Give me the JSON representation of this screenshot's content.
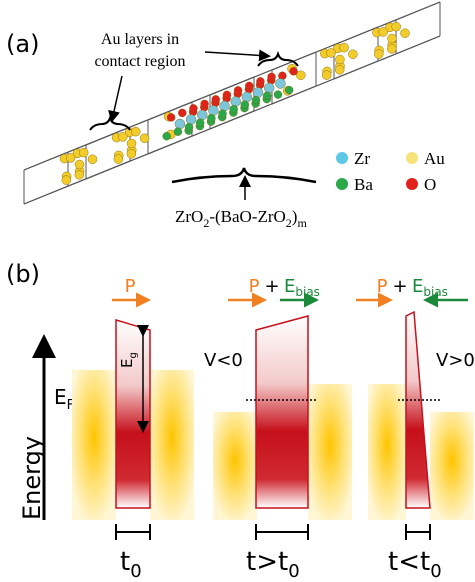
{
  "panel_a": {
    "label": "(a)",
    "annotation": [
      "Au layers in",
      "contact region"
    ],
    "legend": [
      "Zr",
      "Au",
      "Ba",
      "O"
    ],
    "formula": [
      "ZrO",
      "2",
      "-(BaO-ZrO",
      "2",
      ")",
      "m"
    ]
  },
  "panel_b": {
    "label": "(b)",
    "axis_label": "Energy",
    "fermi": {
      "base": "E",
      "sub": "F"
    },
    "gap": {
      "base": "E",
      "sub": "g"
    },
    "columns": [
      {
        "polarization": "P",
        "thickness": {
          "base": "t",
          "sub": "0"
        }
      },
      {
        "polarization": "P",
        "plus": "+",
        "field": {
          "base": "E",
          "sub": "bias"
        },
        "voltage": "V<0",
        "thickness": {
          "base": "t>t",
          "sub": "0"
        }
      },
      {
        "polarization": "P",
        "plus": "+",
        "field": {
          "base": "E",
          "sub": "bias"
        },
        "voltage": "V>0",
        "thickness": {
          "base": "t<t",
          "sub": "0"
        }
      }
    ]
  }
}
